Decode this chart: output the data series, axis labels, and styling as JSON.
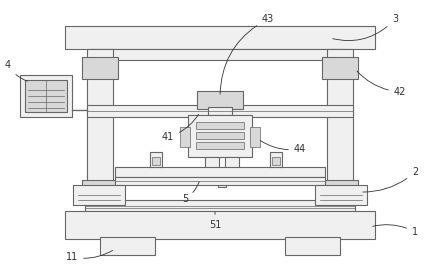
{
  "bg_color": "#ffffff",
  "line_color": "#666666",
  "fill_light": "#f0f0f0",
  "fill_mid": "#d8d8d8",
  "fill_dark": "#c0c0c0",
  "label_color": "#333333",
  "lw": 0.8
}
